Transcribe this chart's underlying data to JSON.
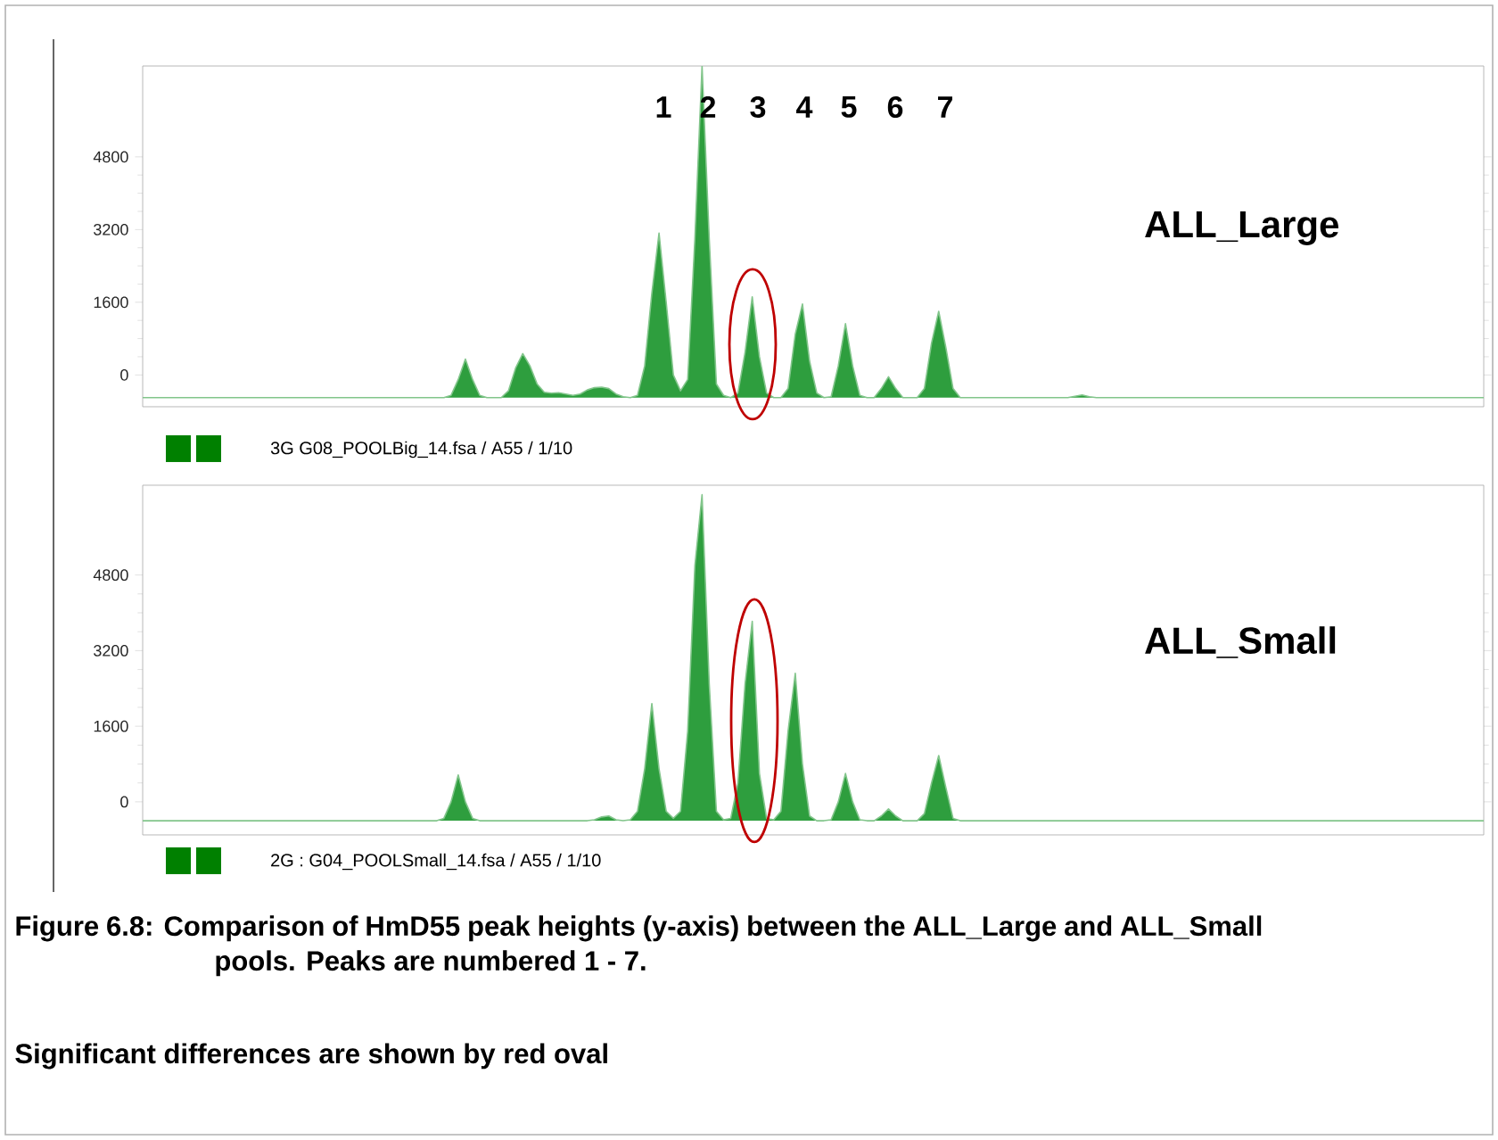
{
  "chart_data": [
    {
      "type": "area",
      "color": "#2e9e3e",
      "tick_labels": "y",
      "categories": [
        null,
        null,
        null,
        null,
        null,
        null,
        null,
        null,
        null,
        null,
        null,
        null,
        null,
        null,
        null,
        null,
        null,
        null,
        null,
        null,
        null,
        null,
        null,
        null,
        null,
        null,
        null,
        null,
        null,
        null,
        null,
        null,
        null,
        null,
        null,
        null,
        null,
        null,
        null,
        null,
        null,
        null,
        null,
        null,
        null,
        null,
        null,
        null,
        null,
        null,
        null,
        null,
        null,
        null,
        null,
        null,
        null,
        null,
        null,
        null,
        null,
        null,
        null,
        null,
        null,
        null,
        null,
        null,
        null,
        null,
        null,
        null,
        null,
        null,
        null,
        null,
        null,
        null,
        null,
        null,
        null,
        null,
        null,
        null,
        null,
        null,
        null,
        null,
        null,
        null,
        null,
        null,
        null,
        null,
        null,
        null,
        null,
        null,
        null,
        null,
        null,
        null,
        null,
        null,
        null,
        null,
        null,
        null,
        null,
        null,
        null,
        null,
        null,
        null,
        null,
        null,
        null,
        null,
        null,
        null,
        null,
        null,
        null,
        null,
        null,
        null,
        null,
        null,
        null,
        null,
        null,
        null,
        null,
        null,
        null,
        null,
        null,
        null,
        null,
        null,
        null,
        null,
        null,
        null,
        null,
        null,
        null,
        null,
        null,
        null,
        null,
        null,
        null,
        null,
        null,
        null,
        null,
        null,
        null,
        null,
        null,
        null,
        null,
        null,
        null,
        null,
        null,
        null,
        null,
        null,
        null,
        null,
        null,
        null,
        null,
        null,
        null,
        null,
        null,
        null,
        null,
        null,
        null,
        null,
        null,
        null,
        null,
        null
      ],
      "values": [
        -500,
        -500,
        -500,
        -500,
        -500,
        -500,
        -500,
        -500,
        -500,
        -500,
        -500,
        -500,
        -500,
        -500,
        -500,
        -500,
        -500,
        -500,
        -500,
        -500,
        -500,
        -500,
        -500,
        -500,
        -500,
        -500,
        -500,
        -500,
        -500,
        -500,
        -500,
        -500,
        -500,
        -500,
        -500,
        -500,
        -500,
        -500,
        -500,
        -500,
        -500,
        -500,
        -500,
        -450,
        -100,
        350,
        -100,
        -450,
        -500,
        -500,
        -500,
        -350,
        150,
        470,
        200,
        -200,
        -380,
        -400,
        -390,
        -420,
        -450,
        -420,
        -330,
        -280,
        -270,
        -300,
        -420,
        -480,
        -500,
        -450,
        200,
        1800,
        3120,
        1600,
        0,
        -350,
        -100,
        3000,
        6800,
        3000,
        -200,
        -450,
        -500,
        -400,
        500,
        1720,
        400,
        -400,
        -500,
        -500,
        -300,
        900,
        1560,
        300,
        -400,
        -500,
        -480,
        200,
        1130,
        200,
        -450,
        -500,
        -500,
        -300,
        -40,
        -300,
        -500,
        -500,
        -500,
        -300,
        700,
        1400,
        600,
        -300,
        -500,
        -500,
        -500,
        -500,
        -500,
        -500,
        -500,
        -500,
        -500,
        -500,
        -500,
        -500,
        -500,
        -500,
        -500,
        -500,
        -470,
        -440,
        -480,
        -500,
        -500,
        -500,
        -500,
        -500,
        -500,
        -500,
        -500,
        -500,
        -500,
        -500,
        -500,
        -500,
        -500,
        -500,
        -500,
        -500,
        -500,
        -500,
        -500,
        -500,
        -500,
        -500,
        -500,
        -500,
        -500,
        -500,
        -500,
        -500,
        -500,
        -500,
        -500,
        -500,
        -500,
        -500,
        -500,
        -500,
        -500,
        -500,
        -500,
        -500,
        -500,
        -500,
        -500,
        -500,
        -500,
        -500,
        -500,
        -500,
        -500,
        -500,
        -500,
        -500,
        -500,
        -500
      ],
      "ylim": [
        -700,
        6800
      ],
      "yticks": [
        0,
        1600,
        3200,
        4800
      ],
      "annotations": [
        "1",
        "2",
        "3",
        "4",
        "5",
        "6",
        "7",
        "ALL_Large",
        "3G  G08_POOLBig_14.fsa / A55 / 1/10"
      ]
    },
    {
      "type": "area",
      "color": "#2e9e3e",
      "tick_labels": "y",
      "categories": [
        null,
        null,
        null,
        null,
        null,
        null,
        null,
        null,
        null,
        null,
        null,
        null,
        null,
        null,
        null,
        null,
        null,
        null,
        null,
        null,
        null,
        null,
        null,
        null,
        null,
        null,
        null,
        null,
        null,
        null,
        null,
        null,
        null,
        null,
        null,
        null,
        null,
        null,
        null,
        null,
        null,
        null,
        null,
        null,
        null,
        null,
        null,
        null,
        null,
        null,
        null,
        null,
        null,
        null,
        null,
        null,
        null,
        null,
        null,
        null,
        null,
        null,
        null,
        null,
        null,
        null,
        null,
        null,
        null,
        null,
        null,
        null,
        null,
        null,
        null,
        null,
        null,
        null,
        null,
        null,
        null,
        null,
        null,
        null,
        null,
        null,
        null,
        null,
        null,
        null,
        null,
        null,
        null,
        null,
        null,
        null,
        null,
        null,
        null,
        null,
        null,
        null,
        null,
        null,
        null,
        null,
        null,
        null,
        null,
        null,
        null,
        null,
        null,
        null,
        null,
        null,
        null,
        null,
        null,
        null,
        null,
        null,
        null,
        null,
        null,
        null,
        null,
        null,
        null,
        null,
        null,
        null,
        null,
        null,
        null,
        null,
        null,
        null,
        null,
        null,
        null,
        null,
        null,
        null,
        null,
        null,
        null,
        null,
        null,
        null,
        null,
        null,
        null,
        null,
        null,
        null,
        null,
        null,
        null,
        null,
        null,
        null,
        null,
        null,
        null,
        null,
        null,
        null,
        null,
        null,
        null,
        null,
        null,
        null,
        null,
        null,
        null,
        null,
        null,
        null,
        null,
        null,
        null,
        null,
        null,
        null,
        null,
        null
      ],
      "values": [
        -400,
        -400,
        -400,
        -400,
        -400,
        -400,
        -400,
        -400,
        -400,
        -400,
        -400,
        -400,
        -400,
        -400,
        -400,
        -400,
        -400,
        -400,
        -400,
        -400,
        -400,
        -400,
        -400,
        -400,
        -400,
        -400,
        -400,
        -400,
        -400,
        -400,
        -400,
        -400,
        -400,
        -400,
        -400,
        -400,
        -400,
        -400,
        -400,
        -400,
        -400,
        -400,
        -350,
        0,
        570,
        0,
        -350,
        -400,
        -400,
        -400,
        -400,
        -400,
        -400,
        -400,
        -400,
        -400,
        -400,
        -400,
        -400,
        -400,
        -400,
        -400,
        -400,
        -380,
        -320,
        -300,
        -380,
        -400,
        -380,
        -200,
        700,
        2080,
        700,
        -200,
        -350,
        -200,
        1500,
        5000,
        6500,
        2500,
        -200,
        -380,
        -350,
        400,
        2500,
        3820,
        600,
        -350,
        -380,
        -200,
        1500,
        2720,
        800,
        -300,
        -400,
        -400,
        -380,
        0,
        600,
        0,
        -380,
        -400,
        -400,
        -300,
        -150,
        -300,
        -400,
        -400,
        -400,
        -250,
        400,
        980,
        300,
        -350,
        -400,
        -400,
        -400,
        -400,
        -400,
        -400,
        -400,
        -400,
        -400,
        -400,
        -400,
        -400,
        -400,
        -400,
        -400,
        -400,
        -400,
        -400,
        -400,
        -400,
        -400,
        -400,
        -400,
        -400,
        -400,
        -400,
        -400,
        -400,
        -400,
        -400,
        -400,
        -400,
        -400,
        -400,
        -400,
        -400,
        -400,
        -400,
        -400,
        -400,
        -400,
        -400,
        -400,
        -400,
        -400,
        -400,
        -400,
        -400,
        -400,
        -400,
        -400,
        -400,
        -400,
        -400,
        -400,
        -400,
        -400,
        -400,
        -400,
        -400,
        -400,
        -400,
        -400,
        -400,
        -400,
        -400,
        -400,
        -400,
        -400,
        -400,
        -400,
        -400,
        -400,
        -400
      ],
      "ylim": [
        -700,
        6700
      ],
      "yticks": [
        0,
        1600,
        3200,
        4800
      ],
      "annotations": [
        "ALL_Small",
        "2G : G04_POOLSmall_14.fsa / A55 / 1/10",
        "Figure 6.8: Comparison of HmD55 peak heights (y-axis) between the ALL_Large and ALL_Small pools.  Peaks are numbered 1 - 7.",
        "Significant differences are shown by red oval"
      ]
    }
  ]
}
